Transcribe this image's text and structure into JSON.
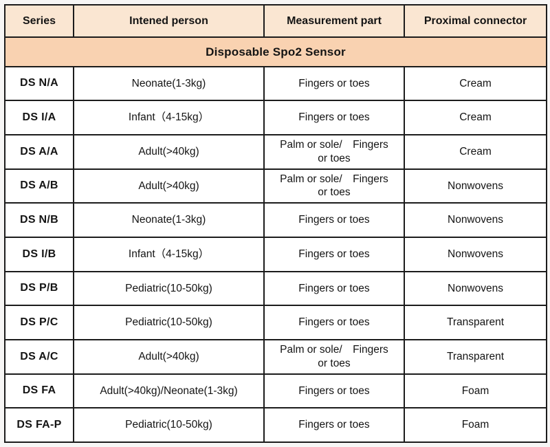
{
  "table": {
    "title": "Disposable Spo2 Sensor",
    "colors": {
      "title_bg": "#f9d2b1",
      "header_bg": "#fae6d2",
      "row_bg": "#ffffff",
      "border": "#1b1b1b",
      "text": "#141414"
    },
    "columns": [
      "Series",
      "Intened person",
      "Measurement part",
      "Proximal connector"
    ],
    "rows": [
      {
        "series": "DS N/A",
        "person": "Neonate(1-3kg)",
        "part": "Fingers or toes",
        "connector": "Cream"
      },
      {
        "series": "DS I/A",
        "person": "Infant（4-15kg）",
        "part": "Fingers or toes",
        "connector": "Cream"
      },
      {
        "series": "DS A/A",
        "person": "Adult(>40kg)",
        "part": "Palm or sole/　Fingers\nor toes",
        "connector": "Cream"
      },
      {
        "series": "DS A/B",
        "person": "Adult(>40kg)",
        "part": "Palm or sole/　Fingers\nor toes",
        "connector": "Nonwovens"
      },
      {
        "series": "DS N/B",
        "person": "Neonate(1-3kg)",
        "part": "Fingers or toes",
        "connector": "Nonwovens"
      },
      {
        "series": "DS I/B",
        "person": "Infant（4-15kg）",
        "part": "Fingers or toes",
        "connector": "Nonwovens"
      },
      {
        "series": "DS P/B",
        "person": "Pediatric(10-50kg)",
        "part": "Fingers or toes",
        "connector": "Nonwovens"
      },
      {
        "series": "DS P/C",
        "person": "Pediatric(10-50kg)",
        "part": "Fingers or toes",
        "connector": "Transparent"
      },
      {
        "series": "DS A/C",
        "person": "Adult(>40kg)",
        "part": "Palm or sole/　Fingers\nor toes",
        "connector": "Transparent"
      },
      {
        "series": "DS FA",
        "person": "Adult(>40kg)/Neonate(1-3kg)",
        "part": "Fingers or toes",
        "connector": "Foam"
      },
      {
        "series": "DS FA-P",
        "person": "Pediatric(10-50kg)",
        "part": "Fingers or toes",
        "connector": "Foam"
      }
    ]
  }
}
